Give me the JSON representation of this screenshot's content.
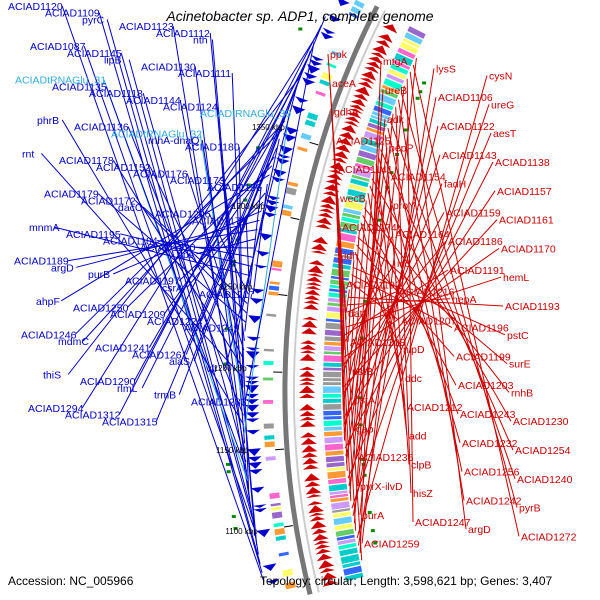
{
  "title": "Acinetobacter sp. ADP1, complete genome",
  "footer": {
    "accession": "Accession: NC_005966",
    "summary": "Topology: circular; Length: 3,598,621 bp; Genes: 3,407"
  },
  "colors": {
    "forward": "#0000cc",
    "reverse": "#cc0000",
    "trna": "#33aadd",
    "backbone": "#777777"
  },
  "ticks": [
    "1100 kbp",
    "1150 kbp",
    "1200 kbp",
    "1250 kbp",
    "1300 kbp",
    "1350 kbp"
  ],
  "left_labels": [
    {
      "text": "ACIAD1120",
      "type": "forward"
    },
    {
      "text": "ACIAD1109",
      "type": "forward"
    },
    {
      "text": "pyrC",
      "type": "forward"
    },
    {
      "text": "ACIAD1123",
      "type": "forward"
    },
    {
      "text": "ACIAD1112",
      "type": "forward"
    },
    {
      "text": "nth",
      "type": "forward"
    },
    {
      "text": "ACIAD1087",
      "type": "forward"
    },
    {
      "text": "ACIAD1145",
      "type": "forward"
    },
    {
      "text": "lipB",
      "type": "forward"
    },
    {
      "text": "ACIAD1130",
      "type": "forward"
    },
    {
      "text": "ACIAD1111",
      "type": "forward"
    },
    {
      "text": "ACIADtRNAGlu_31",
      "type": "trna"
    },
    {
      "text": "ACIAD1135",
      "type": "forward"
    },
    {
      "text": "ACIAD1118",
      "type": "forward"
    },
    {
      "text": "ACIAD1144",
      "type": "forward"
    },
    {
      "text": "ACIAD1124",
      "type": "forward"
    },
    {
      "text": "ACIADtRNAGlu_30",
      "type": "trna"
    },
    {
      "text": "phrB",
      "type": "forward"
    },
    {
      "text": "ACIAD1136",
      "type": "forward"
    },
    {
      "text": "ACIADtRNAGlu_32",
      "type": "trna"
    },
    {
      "text": "rnhA-dnaQ",
      "type": "forward"
    },
    {
      "text": "ACIAD1180",
      "type": "forward"
    },
    {
      "text": "rnt",
      "type": "forward"
    },
    {
      "text": "ACIAD1178",
      "type": "forward"
    },
    {
      "text": "ACIAD1152",
      "type": "forward"
    },
    {
      "text": "ACIAD1176",
      "type": "forward"
    },
    {
      "text": "ACIAD1173",
      "type": "forward"
    },
    {
      "text": "ACIAD1156",
      "type": "forward"
    },
    {
      "text": "ACIAD1179",
      "type": "forward"
    },
    {
      "text": "ACIAD1172",
      "type": "forward"
    },
    {
      "text": "dacC",
      "type": "forward"
    },
    {
      "text": "ACIAD1206",
      "type": "forward"
    },
    {
      "text": "ACIAD1177",
      "type": "forward"
    },
    {
      "text": "mnmA",
      "type": "forward"
    },
    {
      "text": "ACIAD1195",
      "type": "forward"
    },
    {
      "text": "ACIAD1184",
      "type": "forward"
    },
    {
      "text": "ACIAD1220",
      "type": "forward"
    },
    {
      "text": "dps",
      "type": "forward"
    },
    {
      "text": "ACIAD1189",
      "type": "forward"
    },
    {
      "text": "argD",
      "type": "forward"
    },
    {
      "text": "purB",
      "type": "forward"
    },
    {
      "text": "ACIAD1197",
      "type": "forward"
    },
    {
      "text": "csrA",
      "type": "forward"
    },
    {
      "text": "ACIAD1217",
      "type": "forward"
    },
    {
      "text": "ahpF",
      "type": "forward"
    },
    {
      "text": "ACIAD1250",
      "type": "forward"
    },
    {
      "text": "ACIAD1209",
      "type": "forward"
    },
    {
      "text": "ACIAD1224",
      "type": "forward"
    },
    {
      "text": "ACIAD1249",
      "type": "forward"
    },
    {
      "text": "ACIAD1246",
      "type": "forward"
    },
    {
      "text": "mdmC",
      "type": "forward"
    },
    {
      "text": "ACIAD1241",
      "type": "forward"
    },
    {
      "text": "ACIAD1261",
      "type": "forward"
    },
    {
      "text": "alaS",
      "type": "forward"
    },
    {
      "text": "vfr",
      "type": "forward"
    },
    {
      "text": "thiS",
      "type": "forward"
    },
    {
      "text": "ACIAD1290",
      "type": "forward"
    },
    {
      "text": "rlmL",
      "type": "forward"
    },
    {
      "text": "trmB",
      "type": "forward"
    },
    {
      "text": "ACIAD1283",
      "type": "forward"
    },
    {
      "text": "ACIAD1294",
      "type": "forward"
    },
    {
      "text": "ACIAD1312",
      "type": "forward"
    },
    {
      "text": "ACIAD1315",
      "type": "forward"
    }
  ],
  "right_labels": [
    {
      "text": "ppk",
      "type": "reverse"
    },
    {
      "text": "mtgA",
      "type": "reverse"
    },
    {
      "text": "lysS",
      "type": "reverse"
    },
    {
      "text": "cysN",
      "type": "reverse"
    },
    {
      "text": "aceA",
      "type": "reverse"
    },
    {
      "text": "ureB",
      "type": "reverse"
    },
    {
      "text": "ACIAD1106",
      "type": "reverse"
    },
    {
      "text": "ureG",
      "type": "reverse"
    },
    {
      "text": "gdhA",
      "type": "reverse"
    },
    {
      "text": "adk",
      "type": "reverse"
    },
    {
      "text": "ACIAD1122",
      "type": "reverse"
    },
    {
      "text": "aesT",
      "type": "reverse"
    },
    {
      "text": "ACIAD1125",
      "type": "reverse"
    },
    {
      "text": "pepP",
      "type": "reverse"
    },
    {
      "text": "ACIAD1143",
      "type": "reverse"
    },
    {
      "text": "ACIAD1138",
      "type": "reverse"
    },
    {
      "text": "ACIAD1141",
      "type": "reverse"
    },
    {
      "text": "ACIAD1154",
      "type": "reverse"
    },
    {
      "text": "fadH",
      "type": "reverse"
    },
    {
      "text": "ACIAD1157",
      "type": "reverse"
    },
    {
      "text": "wecB",
      "type": "reverse"
    },
    {
      "text": "proY",
      "type": "reverse"
    },
    {
      "text": "ACIAD1159",
      "type": "reverse"
    },
    {
      "text": "ACIAD1161",
      "type": "reverse"
    },
    {
      "text": "ACIAD1174",
      "type": "reverse"
    },
    {
      "text": "ACIAD1164",
      "type": "reverse"
    },
    {
      "text": "ACIAD1186",
      "type": "reverse"
    },
    {
      "text": "ACIAD1170",
      "type": "reverse"
    },
    {
      "text": "idh",
      "type": "reverse"
    },
    {
      "text": "icd",
      "type": "reverse"
    },
    {
      "text": "ACIAD1191",
      "type": "reverse"
    },
    {
      "text": "hemL",
      "type": "reverse"
    },
    {
      "text": "ACIAD1192",
      "type": "reverse"
    },
    {
      "text": "ACIAD1216",
      "type": "reverse"
    },
    {
      "text": "hepA",
      "type": "reverse"
    },
    {
      "text": "ACIAD1193",
      "type": "reverse"
    },
    {
      "text": "dat",
      "type": "reverse"
    },
    {
      "text": "ACIAD1207",
      "type": "reverse"
    },
    {
      "text": "ACIAD1196",
      "type": "reverse"
    },
    {
      "text": "pstC",
      "type": "reverse"
    },
    {
      "text": "ACIAD1208",
      "type": "reverse"
    },
    {
      "text": "nlpD",
      "type": "reverse"
    },
    {
      "text": "ACIAD1199",
      "type": "reverse"
    },
    {
      "text": "surE",
      "type": "reverse"
    },
    {
      "text": "pstB",
      "type": "reverse"
    },
    {
      "text": "ddc",
      "type": "reverse"
    },
    {
      "text": "ACIAD1203",
      "type": "reverse"
    },
    {
      "text": "rnhB",
      "type": "reverse"
    },
    {
      "text": "pstA",
      "type": "reverse"
    },
    {
      "text": "ACIAD1212",
      "type": "reverse"
    },
    {
      "text": "ACIAD1243",
      "type": "reverse"
    },
    {
      "text": "ACIAD1230",
      "type": "reverse"
    },
    {
      "text": "gap",
      "type": "reverse"
    },
    {
      "text": "add",
      "type": "reverse"
    },
    {
      "text": "ACIAD1232",
      "type": "reverse"
    },
    {
      "text": "ACIAD1254",
      "type": "reverse"
    },
    {
      "text": "ACIAD1235",
      "type": "reverse"
    },
    {
      "text": "clpB",
      "type": "reverse"
    },
    {
      "text": "ACIAD1256",
      "type": "reverse"
    },
    {
      "text": "ACIAD1240",
      "type": "reverse"
    },
    {
      "text": "pyrX-ilvD",
      "type": "reverse"
    },
    {
      "text": "hisZ",
      "type": "reverse"
    },
    {
      "text": "ACIAD1242",
      "type": "reverse"
    },
    {
      "text": "pyrB",
      "type": "reverse"
    },
    {
      "text": "purA",
      "type": "reverse"
    },
    {
      "text": "ACIAD1247",
      "type": "reverse"
    },
    {
      "text": "argD",
      "type": "reverse"
    },
    {
      "text": "ACIAD1272",
      "type": "reverse"
    },
    {
      "text": "ACIAD1259",
      "type": "reverse"
    }
  ]
}
